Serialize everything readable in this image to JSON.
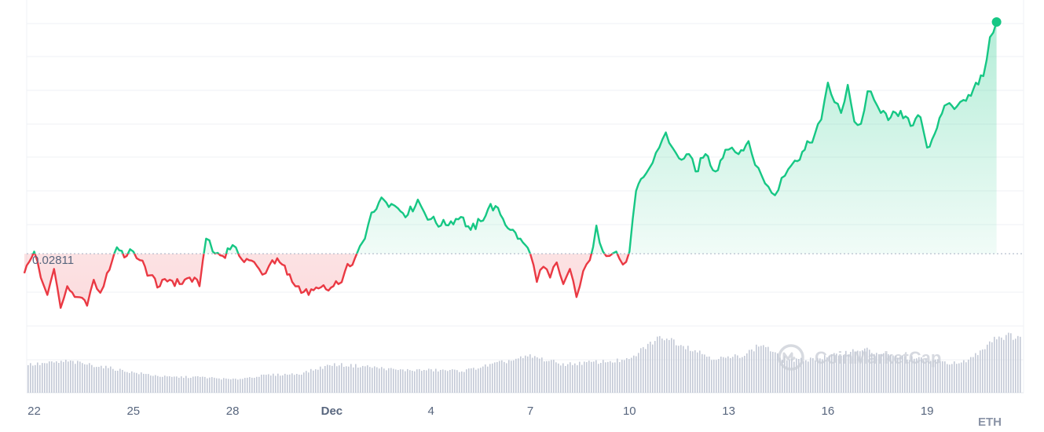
{
  "chart_data": {
    "type": "line",
    "base_value": 0.02811,
    "base_label": "0.02811",
    "unit": "ETH",
    "x_ticks": [
      "22",
      "25",
      "28",
      "Dec",
      "4",
      "7",
      "10",
      "13",
      "16",
      "19"
    ],
    "x_tick_days": [
      0,
      3,
      6,
      9,
      12,
      15,
      18,
      21,
      24,
      27
    ],
    "x_range_days": [
      -0.3,
      29.3
    ],
    "ylim": [
      0.0277,
      0.0314
    ],
    "above_color": "#16c784",
    "below_color": "#ea3943",
    "volume_color": "#c3c9d6",
    "grid": true,
    "price_series": [
      [
        -0.3,
        0.02802
      ],
      [
        0.0,
        0.02812
      ],
      [
        0.2,
        0.028
      ],
      [
        0.4,
        0.02792
      ],
      [
        0.6,
        0.02804
      ],
      [
        0.8,
        0.02786
      ],
      [
        1.0,
        0.02796
      ],
      [
        1.3,
        0.02791
      ],
      [
        1.6,
        0.02787
      ],
      [
        1.8,
        0.02799
      ],
      [
        2.0,
        0.02793
      ],
      [
        2.2,
        0.02802
      ],
      [
        2.5,
        0.02814
      ],
      [
        2.8,
        0.0281
      ],
      [
        3.0,
        0.02812
      ],
      [
        3.2,
        0.02808
      ],
      [
        3.5,
        0.02801
      ],
      [
        3.8,
        0.02796
      ],
      [
        4.1,
        0.02799
      ],
      [
        4.4,
        0.02797
      ],
      [
        4.7,
        0.028
      ],
      [
        5.0,
        0.02796
      ],
      [
        5.2,
        0.02818
      ],
      [
        5.4,
        0.02812
      ],
      [
        5.7,
        0.0281
      ],
      [
        6.0,
        0.02815
      ],
      [
        6.2,
        0.0281
      ],
      [
        6.5,
        0.02808
      ],
      [
        6.8,
        0.02804
      ],
      [
        7.0,
        0.02802
      ],
      [
        7.2,
        0.02808
      ],
      [
        7.5,
        0.02806
      ],
      [
        7.8,
        0.02798
      ],
      [
        8.0,
        0.02796
      ],
      [
        8.3,
        0.02792
      ],
      [
        8.6,
        0.02795
      ],
      [
        8.9,
        0.02794
      ],
      [
        9.2,
        0.02797
      ],
      [
        9.4,
        0.02803
      ],
      [
        9.7,
        0.02809
      ],
      [
        10.0,
        0.02818
      ],
      [
        10.2,
        0.0283
      ],
      [
        10.5,
        0.02837
      ],
      [
        10.8,
        0.02834
      ],
      [
        11.0,
        0.02832
      ],
      [
        11.3,
        0.02829
      ],
      [
        11.6,
        0.02836
      ],
      [
        11.8,
        0.0283
      ],
      [
        12.0,
        0.02827
      ],
      [
        12.3,
        0.02824
      ],
      [
        12.6,
        0.02826
      ],
      [
        12.9,
        0.02828
      ],
      [
        13.2,
        0.02822
      ],
      [
        13.5,
        0.02826
      ],
      [
        13.8,
        0.02834
      ],
      [
        14.1,
        0.02829
      ],
      [
        14.4,
        0.02822
      ],
      [
        14.7,
        0.02818
      ],
      [
        15.0,
        0.02811
      ],
      [
        15.2,
        0.02798
      ],
      [
        15.4,
        0.02805
      ],
      [
        15.6,
        0.028
      ],
      [
        15.8,
        0.02807
      ],
      [
        16.0,
        0.02797
      ],
      [
        16.2,
        0.02804
      ],
      [
        16.4,
        0.02791
      ],
      [
        16.6,
        0.02803
      ],
      [
        16.8,
        0.02808
      ],
      [
        17.0,
        0.02824
      ],
      [
        17.2,
        0.02812
      ],
      [
        17.4,
        0.0281
      ],
      [
        17.6,
        0.02812
      ],
      [
        17.8,
        0.02806
      ],
      [
        18.0,
        0.02812
      ],
      [
        18.2,
        0.0284
      ],
      [
        18.5,
        0.02848
      ],
      [
        18.7,
        0.02853
      ],
      [
        18.9,
        0.0286
      ],
      [
        19.1,
        0.02867
      ],
      [
        19.3,
        0.0286
      ],
      [
        19.5,
        0.02855
      ],
      [
        19.8,
        0.02857
      ],
      [
        20.0,
        0.02849
      ],
      [
        20.3,
        0.02857
      ],
      [
        20.6,
        0.02849
      ],
      [
        20.9,
        0.02859
      ],
      [
        21.1,
        0.0286
      ],
      [
        21.3,
        0.02857
      ],
      [
        21.6,
        0.02863
      ],
      [
        21.8,
        0.02852
      ],
      [
        22.0,
        0.02847
      ],
      [
        22.2,
        0.02842
      ],
      [
        22.4,
        0.02838
      ],
      [
        22.6,
        0.02846
      ],
      [
        22.8,
        0.0285
      ],
      [
        23.0,
        0.02854
      ],
      [
        23.3,
        0.02859
      ],
      [
        23.6,
        0.02866
      ],
      [
        23.8,
        0.02873
      ],
      [
        24.0,
        0.0289
      ],
      [
        24.2,
        0.02881
      ],
      [
        24.4,
        0.02876
      ],
      [
        24.6,
        0.02889
      ],
      [
        24.8,
        0.02872
      ],
      [
        25.0,
        0.02871
      ],
      [
        25.2,
        0.02886
      ],
      [
        25.4,
        0.02882
      ],
      [
        25.6,
        0.02876
      ],
      [
        25.9,
        0.02874
      ],
      [
        26.2,
        0.02877
      ],
      [
        26.5,
        0.0287
      ],
      [
        26.8,
        0.02874
      ],
      [
        27.0,
        0.0286
      ],
      [
        27.3,
        0.02869
      ],
      [
        27.6,
        0.0288
      ],
      [
        27.9,
        0.02879
      ],
      [
        28.1,
        0.02882
      ],
      [
        28.4,
        0.02887
      ],
      [
        28.7,
        0.02893
      ],
      [
        28.9,
        0.02911
      ],
      [
        29.1,
        0.02918
      ]
    ],
    "volume_series": [
      [
        0.0,
        0.45
      ],
      [
        1.0,
        0.5
      ],
      [
        2.0,
        0.42
      ],
      [
        3.0,
        0.32
      ],
      [
        4.0,
        0.25
      ],
      [
        5.0,
        0.25
      ],
      [
        6.0,
        0.21
      ],
      [
        7.0,
        0.28
      ],
      [
        8.0,
        0.3
      ],
      [
        9.0,
        0.45
      ],
      [
        10.0,
        0.42
      ],
      [
        11.0,
        0.36
      ],
      [
        12.0,
        0.36
      ],
      [
        13.0,
        0.35
      ],
      [
        14.0,
        0.47
      ],
      [
        15.0,
        0.58
      ],
      [
        16.0,
        0.45
      ],
      [
        17.0,
        0.49
      ],
      [
        18.0,
        0.52
      ],
      [
        18.5,
        0.75
      ],
      [
        19.0,
        0.9
      ],
      [
        20.0,
        0.67
      ],
      [
        20.5,
        0.55
      ],
      [
        21.0,
        0.55
      ],
      [
        21.5,
        0.62
      ],
      [
        22.0,
        0.78
      ],
      [
        22.5,
        0.57
      ],
      [
        23.0,
        0.51
      ],
      [
        24.0,
        0.57
      ],
      [
        25.0,
        0.7
      ],
      [
        25.5,
        0.62
      ],
      [
        26.0,
        0.58
      ],
      [
        27.0,
        0.52
      ],
      [
        28.0,
        0.46
      ],
      [
        28.5,
        0.62
      ],
      [
        29.0,
        0.88
      ],
      [
        29.3,
        0.9
      ]
    ]
  },
  "watermark": {
    "text": "CoinMarketCap"
  }
}
